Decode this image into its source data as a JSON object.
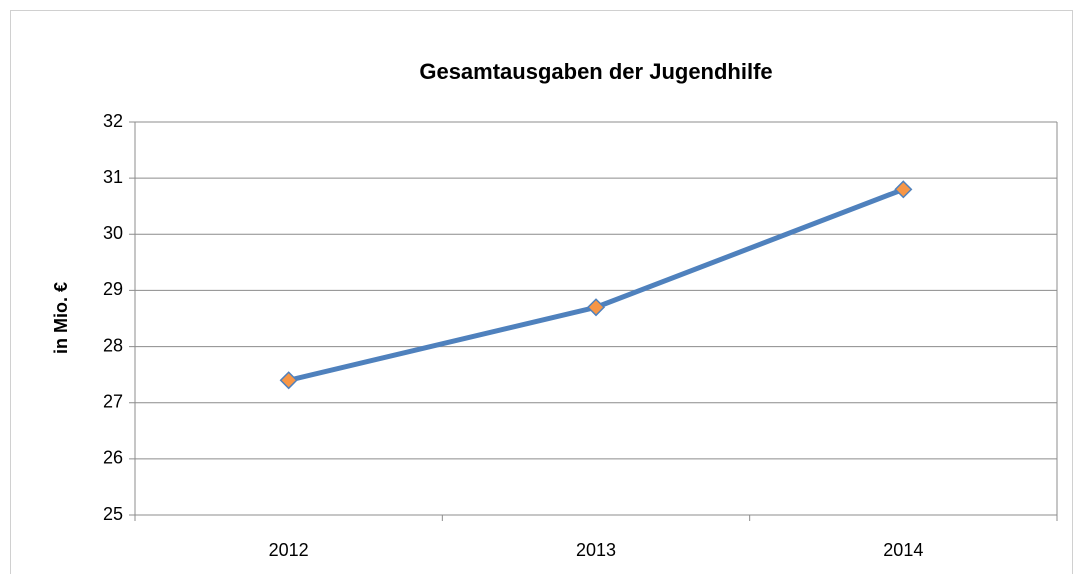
{
  "chart_data": {
    "type": "line",
    "title": "Gesamtausgaben der Jugendhilfe",
    "y_label": "in Mio. €",
    "categories": [
      "2012",
      "2013",
      "2014"
    ],
    "values": [
      27.4,
      28.7,
      30.8
    ],
    "color": "#4f81bd",
    "marker_color": "#f79646",
    "ylim": [
      25,
      32
    ],
    "yticks": [
      25,
      26,
      27,
      28,
      29,
      30,
      31,
      32
    ],
    "grid": true
  }
}
